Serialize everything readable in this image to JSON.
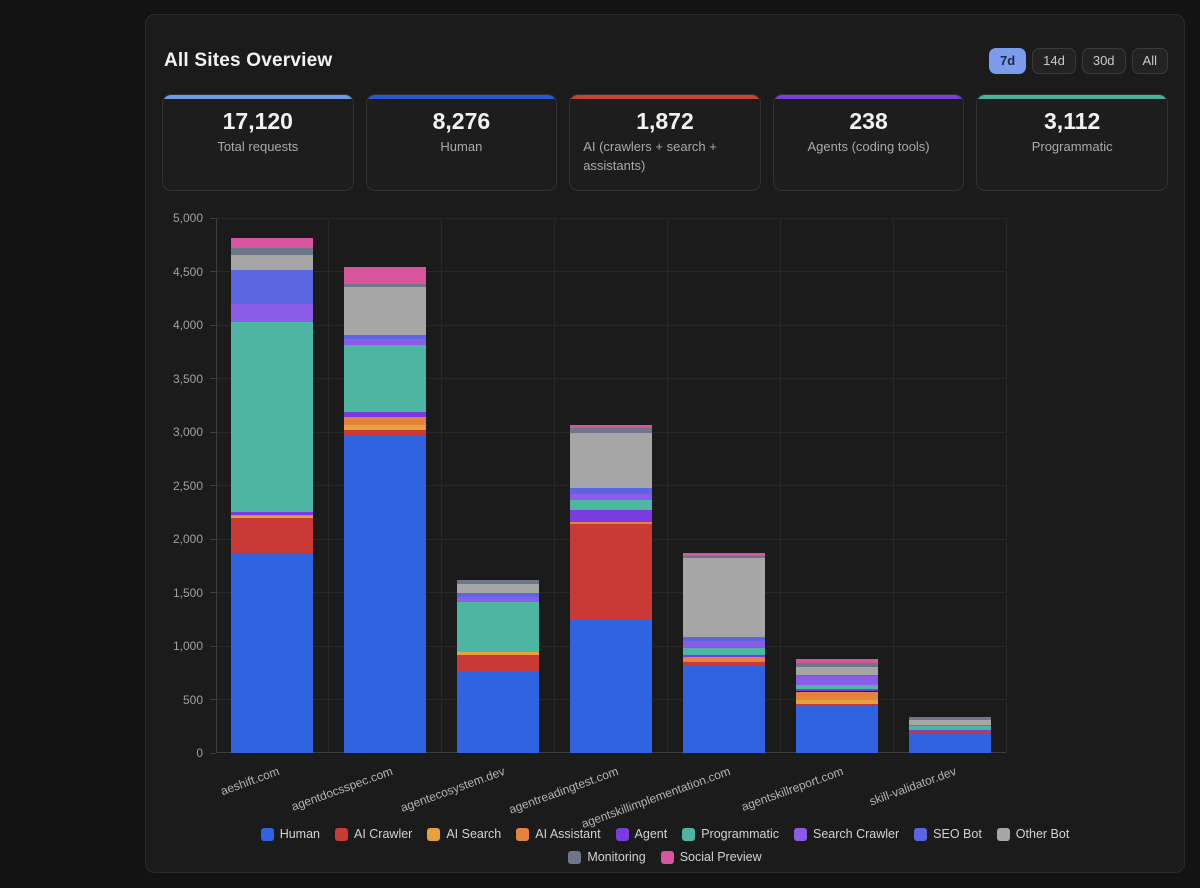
{
  "header": {
    "title": "All Sites Overview",
    "ranges": [
      {
        "label": "7d",
        "active": true
      },
      {
        "label": "14d",
        "active": false
      },
      {
        "label": "30d",
        "active": false
      },
      {
        "label": "All",
        "active": false
      }
    ],
    "active_range_color": "#7b9bed"
  },
  "cards": [
    {
      "value": "17,120",
      "label": "Total requests",
      "accent": "#6d9ae3"
    },
    {
      "value": "8,276",
      "label": "Human",
      "accent": "#2a57cf"
    },
    {
      "value": "1,872",
      "label": "AI (crawlers + search + assistants)",
      "accent": "#c2423a"
    },
    {
      "value": "238",
      "label": "Agents (coding tools)",
      "accent": "#7a3fd4"
    },
    {
      "value": "3,112",
      "label": "Programmatic",
      "accent": "#4caf98"
    }
  ],
  "chart_data": {
    "type": "bar",
    "stacked": true,
    "title": "",
    "xlabel": "",
    "ylabel": "",
    "ylim": [
      0,
      5000
    ],
    "ytick_step": 500,
    "yticks": [
      "0",
      "500",
      "1,000",
      "1,500",
      "2,000",
      "2,500",
      "3,000",
      "3,500",
      "4,000",
      "4,500",
      "5,000"
    ],
    "grid": true,
    "legend_position": "bottom",
    "categories": [
      "aeshift.com",
      "agentdocsspec.com",
      "agentecosystem.dev",
      "agentreadingtest.com",
      "agentskillimplementation.com",
      "agentskillreport.com",
      "skill-validator.dev"
    ],
    "series": [
      {
        "name": "Human",
        "color": "#2f63e0",
        "values": [
          1870,
          2960,
          770,
          1240,
          810,
          435,
          191
        ]
      },
      {
        "name": "AI Crawler",
        "color": "#c93a36",
        "values": [
          330,
          55,
          150,
          900,
          45,
          25,
          15
        ]
      },
      {
        "name": "AI Search",
        "color": "#e3a33a",
        "values": [
          15,
          50,
          22,
          0,
          0,
          35,
          0
        ]
      },
      {
        "name": "AI Assistant",
        "color": "#e5823c",
        "values": [
          10,
          75,
          10,
          15,
          40,
          80,
          0
        ]
      },
      {
        "name": "Agent",
        "color": "#7a3ce0",
        "values": [
          25,
          45,
          0,
          120,
          18,
          20,
          10
        ]
      },
      {
        "name": "Programmatic",
        "color": "#4db5a2",
        "values": [
          1780,
          630,
          460,
          90,
          70,
          45,
          37
        ]
      },
      {
        "name": "Search Crawler",
        "color": "#8a5ce8",
        "values": [
          170,
          50,
          45,
          55,
          60,
          80,
          10
        ]
      },
      {
        "name": "SEO Bot",
        "color": "#5c66e2",
        "values": [
          310,
          40,
          40,
          55,
          40,
          12,
          0
        ]
      },
      {
        "name": "Other Bot",
        "color": "#a6a6a6",
        "values": [
          140,
          450,
          80,
          520,
          740,
          75,
          50
        ]
      },
      {
        "name": "Monitoring",
        "color": "#6e7787",
        "values": [
          70,
          30,
          40,
          45,
          20,
          35,
          20
        ]
      },
      {
        "name": "Social Preview",
        "color": "#d9549e",
        "values": [
          90,
          160,
          0,
          30,
          25,
          35,
          0
        ]
      }
    ]
  }
}
